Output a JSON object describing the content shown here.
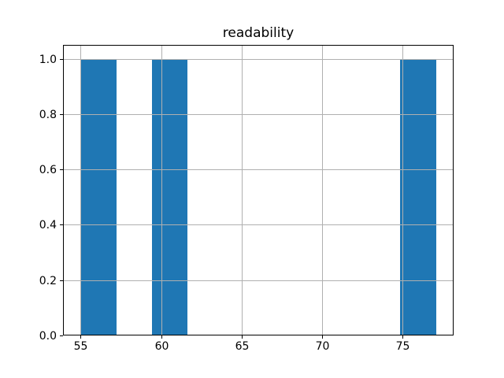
{
  "chart_data": {
    "type": "bar",
    "subtype": "histogram",
    "title": "readability",
    "xlabel": "",
    "ylabel": "",
    "xlim": [
      53.9,
      78.2
    ],
    "ylim": [
      0,
      1.05
    ],
    "grid": true,
    "grid_above_bars": true,
    "legend": null,
    "xticks": [
      {
        "value": 55,
        "label": "55"
      },
      {
        "value": 60,
        "label": "60"
      },
      {
        "value": 65,
        "label": "65"
      },
      {
        "value": 70,
        "label": "70"
      },
      {
        "value": 75,
        "label": "75"
      }
    ],
    "yticks": [
      {
        "value": 0.0,
        "label": "0.0"
      },
      {
        "value": 0.2,
        "label": "0.2"
      },
      {
        "value": 0.4,
        "label": "0.4"
      },
      {
        "value": 0.6,
        "label": "0.6"
      },
      {
        "value": 0.8,
        "label": "0.8"
      },
      {
        "value": 1.0,
        "label": "1.0"
      }
    ],
    "bars": [
      {
        "x0": 55.0,
        "x1": 57.21,
        "height": 1.0
      },
      {
        "x0": 59.42,
        "x1": 61.63,
        "height": 1.0
      },
      {
        "x0": 74.89,
        "x1": 77.1,
        "height": 1.0
      }
    ],
    "colors": {
      "bar": "#1f77b4",
      "grid": "#b0b0b0",
      "spine": "#000000",
      "text": "#000000",
      "background": "#ffffff"
    }
  }
}
